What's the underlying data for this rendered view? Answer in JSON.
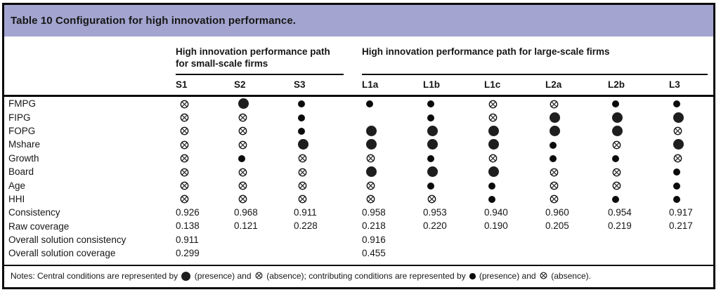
{
  "table": {
    "title": "Table 10 Configuration for high innovation performance.",
    "groups": [
      {
        "label": "High innovation performance path for small-scale firms",
        "columns": [
          "S1",
          "S2",
          "S3"
        ]
      },
      {
        "label": "High innovation performance path for large-scale firms",
        "columns": [
          "L1a",
          "L1b",
          "L1c",
          "L2a",
          "L2b",
          "L3"
        ]
      }
    ],
    "columns": [
      "S1",
      "S2",
      "S3",
      "L1a",
      "L1b",
      "L1c",
      "L2a",
      "L2b",
      "L3"
    ],
    "symbol_legend": {
      "cp": "central-condition-presence-large-filled-circle",
      "p": "contributing-condition-presence-small-filled-circle",
      "a": "absence-circled-x",
      "": "blank"
    },
    "rows": [
      {
        "label": "FMPG",
        "cells": [
          "a",
          "cp",
          "p",
          "p",
          "p",
          "a",
          "a",
          "p",
          "p"
        ]
      },
      {
        "label": "FIPG",
        "cells": [
          "a",
          "a",
          "p",
          "",
          "p",
          "a",
          "cp",
          "cp",
          "cp"
        ]
      },
      {
        "label": "FOPG",
        "cells": [
          "a",
          "a",
          "p",
          "cp",
          "cp",
          "cp",
          "cp",
          "cp",
          "a"
        ]
      },
      {
        "label": "Mshare",
        "cells": [
          "a",
          "a",
          "cp",
          "cp",
          "cp",
          "cp",
          "p",
          "a",
          "cp"
        ]
      },
      {
        "label": "Growth",
        "cells": [
          "a",
          "p",
          "a",
          "a",
          "p",
          "a",
          "p",
          "p",
          "a"
        ]
      },
      {
        "label": "Board",
        "cells": [
          "a",
          "a",
          "a",
          "cp",
          "cp",
          "cp",
          "a",
          "a",
          "p"
        ]
      },
      {
        "label": "Age",
        "cells": [
          "a",
          "a",
          "a",
          "a",
          "p",
          "p",
          "a",
          "a",
          "p"
        ]
      },
      {
        "label": "HHI",
        "cells": [
          "a",
          "a",
          "a",
          "a",
          "a",
          "p",
          "a",
          "p",
          "p"
        ]
      },
      {
        "label": "Consistency",
        "cells": [
          "0.926",
          "0.968",
          "0.911",
          "0.958",
          "0.953",
          "0.940",
          "0.960",
          "0.954",
          "0.917"
        ]
      },
      {
        "label": "Raw coverage",
        "cells": [
          "0.138",
          "0.121",
          "0.228",
          "0.218",
          "0.220",
          "0.190",
          "0.205",
          "0.219",
          "0.217"
        ]
      },
      {
        "label": "Overall solution consistency",
        "cells": [
          "0.911",
          "",
          "",
          "0.916",
          "",
          "",
          "",
          "",
          ""
        ]
      },
      {
        "label": "Overall solution coverage",
        "cells": [
          "0.299",
          "",
          "",
          "0.455",
          "",
          "",
          "",
          "",
          ""
        ]
      }
    ]
  },
  "notes": {
    "segments": [
      {
        "text": "Notes: Central conditions are represented by "
      },
      {
        "symbol": "cp"
      },
      {
        "text": " (presence) and "
      },
      {
        "symbol": "a"
      },
      {
        "text": " (absence); contributing conditions are represented by "
      },
      {
        "symbol": "p"
      },
      {
        "text": " (presence) and "
      },
      {
        "symbol": "a"
      },
      {
        "text": " (absence)."
      }
    ]
  },
  "colors": {
    "header_bg": "#a3a5d0",
    "border": "#0a0a0a",
    "text": "#161616"
  }
}
